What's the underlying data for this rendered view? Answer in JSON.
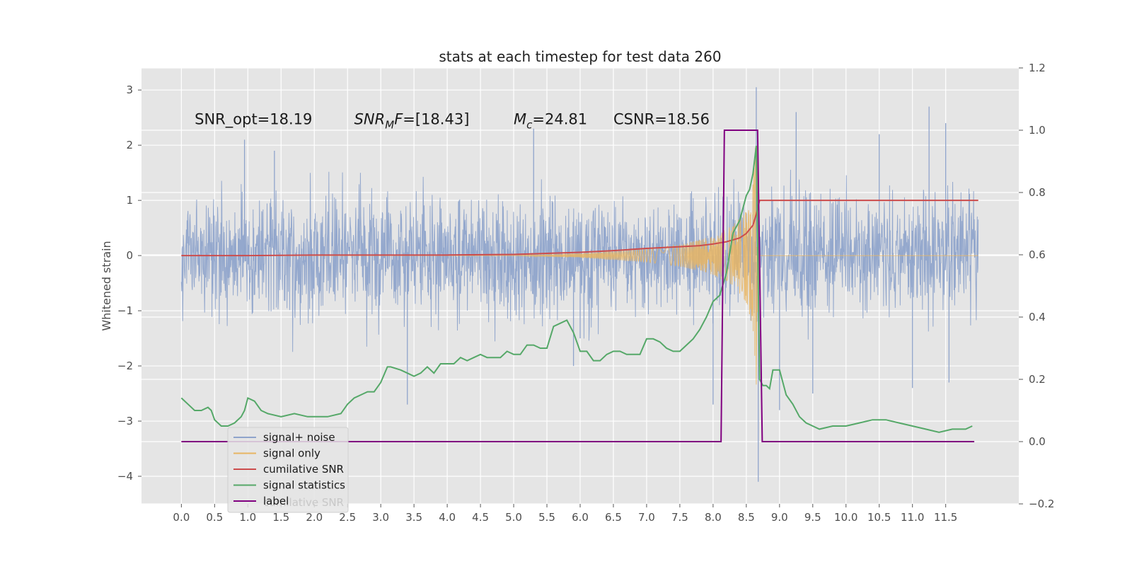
{
  "chart_data": {
    "type": "line",
    "title": "stats at each timestep for test data 260",
    "ylabel": "Whitened strain",
    "ylabel_right": "",
    "xlabel": "",
    "xlim": [
      -0.6,
      12.6
    ],
    "ylim": [
      -4.5,
      3.4
    ],
    "ylim_right": [
      -0.2,
      1.2
    ],
    "xticks": [
      0.0,
      0.5,
      1.0,
      1.5,
      2.0,
      2.5,
      3.0,
      3.5,
      4.0,
      4.5,
      5.0,
      5.5,
      6.0,
      6.5,
      7.0,
      7.5,
      8.0,
      8.5,
      9.0,
      9.5,
      10.0,
      10.5,
      11.0,
      11.5
    ],
    "xtick_labels": [
      "0.0",
      "0.5",
      "1.0",
      "1.5",
      "2.0",
      "2.5",
      "3.0",
      "3.5",
      "4.0",
      "4.5",
      "5.0",
      "5.5",
      "6.0",
      "6.5",
      "7.0",
      "7.5",
      "8.0",
      "8.5",
      "9.0",
      "9.5",
      "10.0",
      "10.5",
      "11.0",
      "11.5"
    ],
    "yticks": [
      3,
      2,
      1,
      0,
      -1,
      -2,
      -3,
      -4
    ],
    "ytick_labels": [
      "3",
      "2",
      "1",
      "0",
      "−1",
      "−2",
      "−3",
      "−4"
    ],
    "yticks_right": [
      1.2,
      1.0,
      0.8,
      0.6,
      0.4,
      0.2,
      0.0,
      -0.2
    ],
    "ytick_labels_right": [
      "1.2",
      "1.0",
      "0.8",
      "0.6",
      "0.4",
      "0.2",
      "0.0",
      "−0.2"
    ],
    "grid": true,
    "legend_position": "lower-left",
    "annotations": [
      {
        "id": "snr-opt",
        "text": "SNR_opt=18.19",
        "x": 0.2,
        "y": 2.38
      },
      {
        "id": "snr-mf",
        "text": "SNR",
        "sub": "M",
        "tail": "F=[18.43]",
        "italic": true,
        "x": 2.6,
        "y": 2.38
      },
      {
        "id": "mc",
        "text": "M",
        "sub": "c",
        "tail": "=24.81",
        "italic_head": true,
        "x": 5.0,
        "y": 2.38
      },
      {
        "id": "csnr",
        "text": "CSNR=18.56",
        "x": 6.5,
        "y": 2.38
      }
    ],
    "series": [
      {
        "name": "signal+ noise",
        "color": "#8fa4cb",
        "axis": "left",
        "kind": "noise_envelope",
        "x_range": [
          0.0,
          11.99
        ],
        "typical_amplitude": 1.2,
        "peak_spikes": [
          [
            0.95,
            2.1
          ],
          [
            1.4,
            1.9
          ],
          [
            3.4,
            -2.7
          ],
          [
            5.3,
            2.3
          ],
          [
            5.9,
            -2.0
          ],
          [
            6.0,
            -1.5
          ],
          [
            8.0,
            -2.7
          ],
          [
            8.65,
            3.05
          ],
          [
            8.68,
            -4.1
          ],
          [
            9.0,
            -2.8
          ],
          [
            9.25,
            2.6
          ],
          [
            9.5,
            -2.5
          ],
          [
            10.5,
            2.2
          ],
          [
            11.0,
            -2.4
          ],
          [
            11.25,
            2.7
          ],
          [
            11.5,
            2.4
          ],
          [
            11.55,
            -2.3
          ]
        ]
      },
      {
        "name": "signal only",
        "color": "#e8b563",
        "axis": "left",
        "kind": "chirp",
        "envelope": [
          [
            5.0,
            0.0
          ],
          [
            6.0,
            0.04
          ],
          [
            7.0,
            0.12
          ],
          [
            7.5,
            0.2
          ],
          [
            8.0,
            0.35
          ],
          [
            8.3,
            0.55
          ],
          [
            8.5,
            0.85
          ],
          [
            8.6,
            1.3
          ],
          [
            8.66,
            2.6
          ],
          [
            8.7,
            0.0
          ]
        ]
      },
      {
        "name": "cumilative SNR",
        "color": "#cc4c4c",
        "axis": "left",
        "x": [
          0.0,
          1.0,
          2.0,
          3.0,
          4.0,
          5.0,
          5.5,
          6.0,
          6.5,
          7.0,
          7.5,
          7.8,
          8.0,
          8.2,
          8.4,
          8.5,
          8.6,
          8.65,
          8.7,
          9.0,
          10.0,
          11.0,
          11.99
        ],
        "y": [
          0.0,
          0.0,
          0.01,
          0.01,
          0.01,
          0.02,
          0.04,
          0.06,
          0.09,
          0.13,
          0.16,
          0.18,
          0.21,
          0.25,
          0.32,
          0.4,
          0.55,
          0.75,
          1.0,
          1.0,
          1.0,
          1.0,
          1.0
        ]
      },
      {
        "name": "signal statistics",
        "color": "#55a868",
        "axis": "right",
        "x": [
          0.0,
          0.1,
          0.2,
          0.3,
          0.4,
          0.45,
          0.5,
          0.6,
          0.7,
          0.8,
          0.9,
          0.95,
          1.0,
          1.1,
          1.2,
          1.3,
          1.5,
          1.7,
          1.9,
          2.0,
          2.2,
          2.4,
          2.5,
          2.6,
          2.8,
          2.9,
          3.0,
          3.1,
          3.15,
          3.3,
          3.4,
          3.5,
          3.6,
          3.7,
          3.8,
          3.9,
          4.0,
          4.1,
          4.2,
          4.3,
          4.4,
          4.5,
          4.6,
          4.8,
          4.9,
          5.0,
          5.1,
          5.2,
          5.3,
          5.4,
          5.5,
          5.6,
          5.7,
          5.8,
          5.9,
          6.0,
          6.1,
          6.2,
          6.3,
          6.4,
          6.5,
          6.6,
          6.7,
          6.8,
          6.9,
          7.0,
          7.1,
          7.2,
          7.3,
          7.4,
          7.5,
          7.6,
          7.7,
          7.8,
          7.9,
          8.0,
          8.1,
          8.2,
          8.3,
          8.4,
          8.5,
          8.55,
          8.6,
          8.65,
          8.7,
          8.75,
          8.8,
          8.85,
          8.9,
          9.0,
          9.1,
          9.2,
          9.3,
          9.4,
          9.5,
          9.6,
          9.8,
          10.0,
          10.2,
          10.4,
          10.6,
          10.8,
          11.0,
          11.2,
          11.4,
          11.6,
          11.8,
          11.9
        ],
        "y": [
          0.14,
          0.12,
          0.1,
          0.1,
          0.11,
          0.1,
          0.07,
          0.05,
          0.05,
          0.06,
          0.08,
          0.1,
          0.14,
          0.13,
          0.1,
          0.09,
          0.08,
          0.09,
          0.08,
          0.08,
          0.08,
          0.09,
          0.12,
          0.14,
          0.16,
          0.16,
          0.19,
          0.24,
          0.24,
          0.23,
          0.22,
          0.21,
          0.22,
          0.24,
          0.22,
          0.25,
          0.25,
          0.25,
          0.27,
          0.26,
          0.27,
          0.28,
          0.27,
          0.27,
          0.29,
          0.28,
          0.28,
          0.31,
          0.31,
          0.3,
          0.3,
          0.37,
          0.38,
          0.39,
          0.35,
          0.29,
          0.29,
          0.26,
          0.26,
          0.28,
          0.29,
          0.29,
          0.28,
          0.28,
          0.28,
          0.33,
          0.33,
          0.32,
          0.3,
          0.29,
          0.29,
          0.31,
          0.33,
          0.36,
          0.4,
          0.45,
          0.47,
          0.54,
          0.67,
          0.71,
          0.79,
          0.81,
          0.86,
          0.95,
          0.2,
          0.18,
          0.18,
          0.17,
          0.23,
          0.23,
          0.15,
          0.12,
          0.08,
          0.06,
          0.05,
          0.04,
          0.05,
          0.05,
          0.06,
          0.07,
          0.07,
          0.06,
          0.05,
          0.04,
          0.03,
          0.04,
          0.04,
          0.05
        ]
      },
      {
        "name": "label",
        "color": "#800080",
        "axis": "right",
        "x": [
          0.0,
          8.12,
          8.17,
          8.67,
          8.74,
          11.93
        ],
        "y": [
          0.0,
          0.0,
          1.0,
          1.0,
          0.0,
          0.0
        ]
      }
    ],
    "legend": [
      "signal+ noise",
      "signal only",
      "cumilative SNR",
      "signal statistics",
      "label"
    ],
    "legend_overlap_text": "cumilative SNR"
  }
}
